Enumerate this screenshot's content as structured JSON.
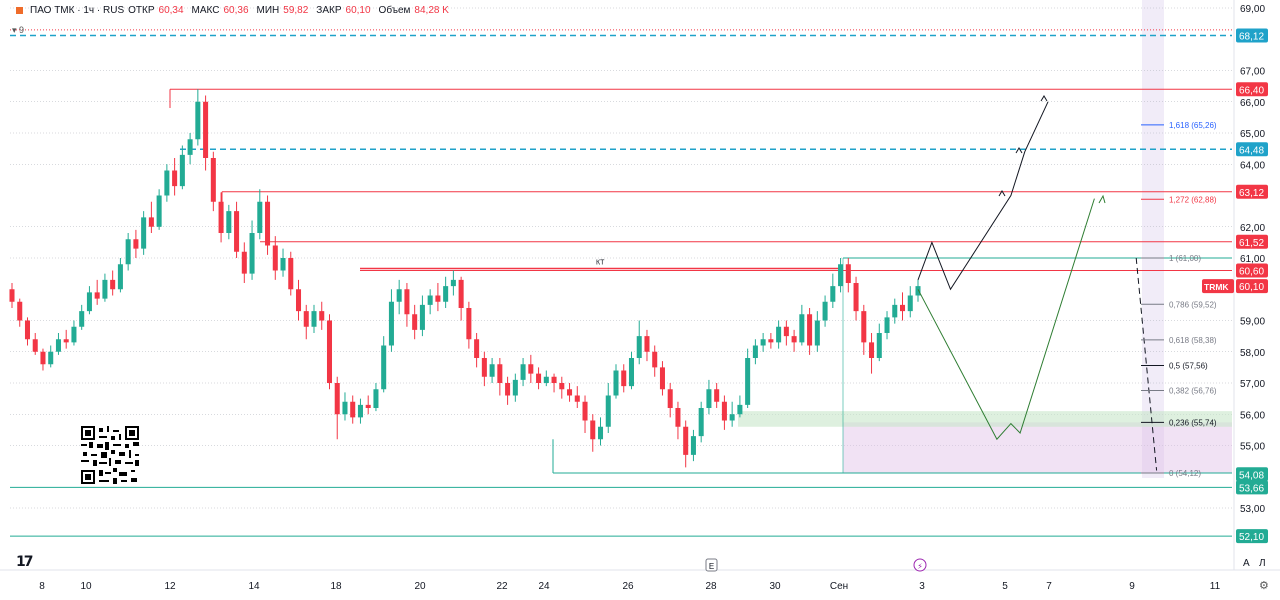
{
  "header": {
    "symbol": "ПАО ТМК · 1ч · RUS",
    "open_label": "ОТКР",
    "open": "60,34",
    "high_label": "МАКС",
    "high": "60,36",
    "low_label": "МИН",
    "low": "59,82",
    "close_label": "ЗАКР",
    "close": "60,10",
    "volume_label": "Объем",
    "volume": "84,28 K"
  },
  "indicator_badge": "9",
  "toolbar": {
    "btn_auto": "A",
    "btn_log": "Л",
    "settings_icon": "gear-icon",
    "logo": "17"
  },
  "chart_data": {
    "type": "candlestick",
    "title": "",
    "price_axis": {
      "ylim": [
        51.5,
        69.0
      ],
      "ticks": [
        "69,00",
        "67,00",
        "66,00",
        "65,00",
        "64,00",
        "62,00",
        "61,00",
        "59,00",
        "58,00",
        "57,00",
        "56,00",
        "55,00",
        "53,00"
      ],
      "tick_values": [
        69,
        67,
        66,
        65,
        64,
        62,
        61,
        59,
        58,
        57,
        56,
        55,
        53
      ]
    },
    "time_axis": {
      "ticks": [
        "8",
        "10",
        "12",
        "14",
        "18",
        "20",
        "22",
        "24",
        "26",
        "28",
        "30",
        "Сен",
        "3",
        "5",
        "7",
        "9",
        "11"
      ]
    },
    "price_labels": [
      {
        "text": "68,12",
        "value": 68.12,
        "color": "#1fa2c9"
      },
      {
        "text": "66,40",
        "value": 66.4,
        "color": "#f23645"
      },
      {
        "text": "64,48",
        "value": 64.48,
        "color": "#1fa2c9"
      },
      {
        "text": "63,12",
        "value": 63.12,
        "color": "#f23645"
      },
      {
        "text": "61,52",
        "value": 61.52,
        "color": "#f23645"
      },
      {
        "text": "60,60",
        "value": 60.6,
        "color": "#f23645"
      },
      {
        "text": "60,10",
        "value": 60.1,
        "color": "#f23645",
        "tag": "TRMK"
      },
      {
        "text": "54,08",
        "value": 54.08,
        "color": "#22ab94"
      },
      {
        "text": "53,66",
        "value": 53.66,
        "color": "#22ab94"
      },
      {
        "text": "52,10",
        "value": 52.1,
        "color": "#22ab94"
      }
    ],
    "fib_levels": [
      {
        "text": "1,618 (65,26)",
        "value": 65.26,
        "color": "#2962ff"
      },
      {
        "text": "1,272 (62,88)",
        "value": 62.88,
        "color": "#f23645"
      },
      {
        "text": "1 (61,00)",
        "value": 61.0,
        "color": "#787b86"
      },
      {
        "text": "0,786 (59,52)",
        "value": 59.52,
        "color": "#787b86"
      },
      {
        "text": "0,618 (58,38)",
        "value": 58.38,
        "color": "#787b86"
      },
      {
        "text": "0,5 (57,56)",
        "value": 57.56,
        "color": "#131722"
      },
      {
        "text": "0,382 (56,76)",
        "value": 56.76,
        "color": "#787b86"
      },
      {
        "text": "0,236 (55,74)",
        "value": 55.74,
        "color": "#131722"
      },
      {
        "text": "0 (54,12)",
        "value": 54.12,
        "color": "#787b86"
      }
    ],
    "annotation_label": "КТ",
    "level_lines": [
      {
        "value": 68.3,
        "color": "#f23645",
        "style": "dotted"
      },
      {
        "value": 68.12,
        "color": "#1fa2c9",
        "style": "dashed"
      },
      {
        "value": 66.4,
        "color": "#f23645",
        "style": "solid"
      },
      {
        "value": 64.48,
        "color": "#1fa2c9",
        "style": "dashed"
      },
      {
        "value": 63.12,
        "color": "#f23645",
        "style": "solid"
      },
      {
        "value": 61.52,
        "color": "#f23645",
        "style": "solid"
      },
      {
        "value": 60.6,
        "color": "#f23645",
        "style": "solid"
      },
      {
        "value": 61.0,
        "color": "#22ab94",
        "style": "solid"
      },
      {
        "value": 53.66,
        "color": "#22ab94",
        "style": "solid"
      },
      {
        "value": 52.1,
        "color": "#22ab94",
        "style": "solid"
      },
      {
        "value": 54.12,
        "color": "#22ab94",
        "style": "solid"
      }
    ],
    "candles": [
      [
        60.0,
        59.6,
        60.2,
        59.4
      ],
      [
        59.6,
        59.0,
        59.7,
        58.8
      ],
      [
        59.0,
        58.4,
        59.1,
        58.2
      ],
      [
        58.4,
        58.0,
        58.6,
        57.9
      ],
      [
        58.0,
        57.6,
        58.1,
        57.4
      ],
      [
        57.6,
        58.0,
        58.2,
        57.5
      ],
      [
        58.0,
        58.4,
        58.6,
        57.9
      ],
      [
        58.4,
        58.3,
        58.7,
        58.1
      ],
      [
        58.3,
        58.8,
        59.0,
        58.2
      ],
      [
        58.8,
        59.3,
        59.5,
        58.7
      ],
      [
        59.3,
        59.9,
        60.1,
        59.2
      ],
      [
        59.9,
        59.7,
        60.3,
        59.5
      ],
      [
        59.7,
        60.3,
        60.5,
        59.6
      ],
      [
        60.3,
        60.0,
        60.6,
        59.8
      ],
      [
        60.0,
        60.8,
        61.0,
        59.9
      ],
      [
        60.8,
        61.6,
        61.8,
        60.6
      ],
      [
        61.6,
        61.3,
        61.9,
        61.0
      ],
      [
        61.3,
        62.3,
        62.5,
        61.1
      ],
      [
        62.3,
        62.0,
        62.8,
        61.8
      ],
      [
        62.0,
        63.0,
        63.2,
        61.9
      ],
      [
        63.0,
        63.8,
        64.0,
        62.8
      ],
      [
        63.8,
        63.3,
        64.2,
        63.0
      ],
      [
        63.3,
        64.3,
        64.6,
        63.2
      ],
      [
        64.3,
        64.8,
        65.0,
        64.0
      ],
      [
        64.8,
        66.0,
        66.4,
        64.6
      ],
      [
        66.0,
        64.2,
        66.2,
        63.8
      ],
      [
        64.2,
        62.8,
        64.4,
        62.5
      ],
      [
        62.8,
        61.8,
        63.1,
        61.5
      ],
      [
        61.8,
        62.5,
        62.7,
        61.6
      ],
      [
        62.5,
        61.2,
        62.8,
        61.0
      ],
      [
        61.2,
        60.5,
        61.5,
        60.2
      ],
      [
        60.5,
        61.8,
        62.2,
        60.3
      ],
      [
        61.8,
        62.8,
        63.2,
        61.6
      ],
      [
        62.8,
        61.4,
        63.0,
        61.1
      ],
      [
        61.4,
        60.6,
        61.7,
        60.3
      ],
      [
        60.6,
        61.0,
        61.3,
        60.4
      ],
      [
        61.0,
        60.0,
        61.2,
        59.8
      ],
      [
        60.0,
        59.3,
        60.3,
        59.0
      ],
      [
        59.3,
        58.8,
        59.5,
        58.4
      ],
      [
        58.8,
        59.3,
        59.5,
        58.6
      ],
      [
        59.3,
        59.0,
        59.6,
        58.7
      ],
      [
        59.0,
        57.0,
        59.2,
        56.8
      ],
      [
        57.0,
        56.0,
        57.2,
        55.2
      ],
      [
        56.0,
        56.4,
        56.7,
        55.8
      ],
      [
        56.4,
        55.9,
        56.6,
        55.7
      ],
      [
        55.9,
        56.3,
        56.5,
        55.7
      ],
      [
        56.3,
        56.2,
        56.6,
        56.0
      ],
      [
        56.2,
        56.8,
        57.0,
        56.1
      ],
      [
        56.8,
        58.2,
        58.5,
        56.7
      ],
      [
        58.2,
        59.6,
        60.0,
        58.0
      ],
      [
        59.6,
        60.0,
        60.3,
        59.2
      ],
      [
        60.0,
        59.2,
        60.2,
        58.8
      ],
      [
        59.2,
        58.7,
        59.5,
        58.4
      ],
      [
        58.7,
        59.5,
        59.8,
        58.5
      ],
      [
        59.5,
        59.8,
        60.0,
        59.2
      ],
      [
        59.8,
        59.6,
        60.2,
        59.3
      ],
      [
        59.6,
        60.1,
        60.4,
        59.4
      ],
      [
        60.1,
        60.3,
        60.6,
        59.8
      ],
      [
        60.3,
        59.4,
        60.4,
        59.0
      ],
      [
        59.4,
        58.4,
        59.6,
        58.1
      ],
      [
        58.4,
        57.8,
        58.6,
        57.5
      ],
      [
        57.8,
        57.2,
        58.0,
        56.9
      ],
      [
        57.2,
        57.6,
        57.8,
        57.0
      ],
      [
        57.6,
        57.0,
        57.8,
        56.6
      ],
      [
        57.0,
        56.6,
        57.2,
        56.3
      ],
      [
        56.6,
        57.1,
        57.3,
        56.4
      ],
      [
        57.1,
        57.6,
        57.8,
        56.9
      ],
      [
        57.6,
        57.3,
        57.9,
        57.0
      ],
      [
        57.3,
        57.0,
        57.5,
        56.8
      ],
      [
        57.0,
        57.2,
        57.4,
        56.9
      ],
      [
        57.2,
        57.0,
        57.3,
        56.7
      ],
      [
        57.0,
        56.8,
        57.2,
        56.5
      ],
      [
        56.8,
        56.6,
        57.0,
        56.4
      ],
      [
        56.6,
        56.4,
        56.9,
        56.2
      ],
      [
        56.4,
        55.8,
        56.6,
        55.4
      ],
      [
        55.8,
        55.2,
        56.0,
        54.8
      ],
      [
        55.2,
        55.6,
        55.9,
        55.0
      ],
      [
        55.6,
        56.6,
        57.0,
        55.4
      ],
      [
        56.6,
        57.4,
        57.6,
        56.5
      ],
      [
        57.4,
        56.9,
        57.6,
        56.7
      ],
      [
        56.9,
        57.8,
        58.0,
        56.8
      ],
      [
        57.8,
        58.5,
        59.0,
        57.6
      ],
      [
        58.5,
        58.0,
        58.7,
        57.7
      ],
      [
        58.0,
        57.5,
        58.2,
        57.2
      ],
      [
        57.5,
        56.8,
        57.7,
        56.6
      ],
      [
        56.8,
        56.2,
        57.0,
        55.9
      ],
      [
        56.2,
        55.6,
        56.4,
        55.2
      ],
      [
        55.6,
        54.7,
        55.8,
        54.3
      ],
      [
        54.7,
        55.3,
        55.5,
        54.5
      ],
      [
        55.3,
        56.2,
        56.4,
        55.1
      ],
      [
        56.2,
        56.8,
        57.1,
        56.0
      ],
      [
        56.8,
        56.4,
        57.0,
        56.2
      ],
      [
        56.4,
        55.8,
        56.6,
        55.5
      ],
      [
        55.8,
        56.0,
        56.4,
        55.6
      ],
      [
        56.0,
        56.3,
        56.6,
        55.9
      ],
      [
        56.3,
        57.8,
        58.1,
        56.2
      ],
      [
        57.8,
        58.2,
        58.4,
        57.6
      ],
      [
        58.2,
        58.4,
        58.6,
        58.0
      ],
      [
        58.4,
        58.3,
        58.6,
        58.1
      ],
      [
        58.3,
        58.8,
        59.0,
        58.1
      ],
      [
        58.8,
        58.5,
        59.0,
        58.2
      ],
      [
        58.5,
        58.3,
        58.7,
        58.0
      ],
      [
        58.3,
        59.2,
        59.5,
        58.2
      ],
      [
        59.2,
        58.2,
        59.4,
        57.9
      ],
      [
        58.2,
        59.0,
        59.3,
        58.0
      ],
      [
        59.0,
        59.6,
        59.8,
        58.8
      ],
      [
        59.6,
        60.1,
        60.5,
        59.4
      ],
      [
        60.1,
        60.8,
        61.0,
        59.9
      ],
      [
        60.8,
        60.2,
        61.0,
        59.9
      ],
      [
        60.2,
        59.3,
        60.4,
        59.0
      ],
      [
        59.3,
        58.3,
        59.5,
        57.9
      ],
      [
        58.3,
        57.8,
        58.6,
        57.3
      ],
      [
        57.8,
        58.6,
        58.9,
        57.7
      ],
      [
        58.6,
        59.1,
        59.3,
        58.4
      ],
      [
        59.1,
        59.5,
        59.7,
        58.9
      ],
      [
        59.5,
        59.3,
        59.9,
        59.0
      ],
      [
        59.3,
        59.8,
        60.1,
        59.1
      ],
      [
        59.8,
        60.1,
        60.3,
        59.6
      ]
    ],
    "projection_paths": [
      {
        "color": "#131722",
        "points": [
          [
            9.05,
            60.3
          ],
          [
            9.2,
            61.5
          ],
          [
            9.4,
            60.0
          ],
          [
            10.05,
            63.0
          ],
          [
            10.2,
            64.4
          ],
          [
            10.45,
            66.0
          ]
        ]
      },
      {
        "color": "#2e7d32",
        "points": [
          [
            9.05,
            60.0
          ],
          [
            9.9,
            55.2
          ],
          [
            10.05,
            55.7
          ],
          [
            10.15,
            55.4
          ],
          [
            10.95,
            62.9
          ]
        ]
      },
      {
        "color": "#131722",
        "dashed": true,
        "points": [
          [
            11.4,
            61.0
          ],
          [
            11.62,
            54.2
          ]
        ]
      }
    ]
  }
}
